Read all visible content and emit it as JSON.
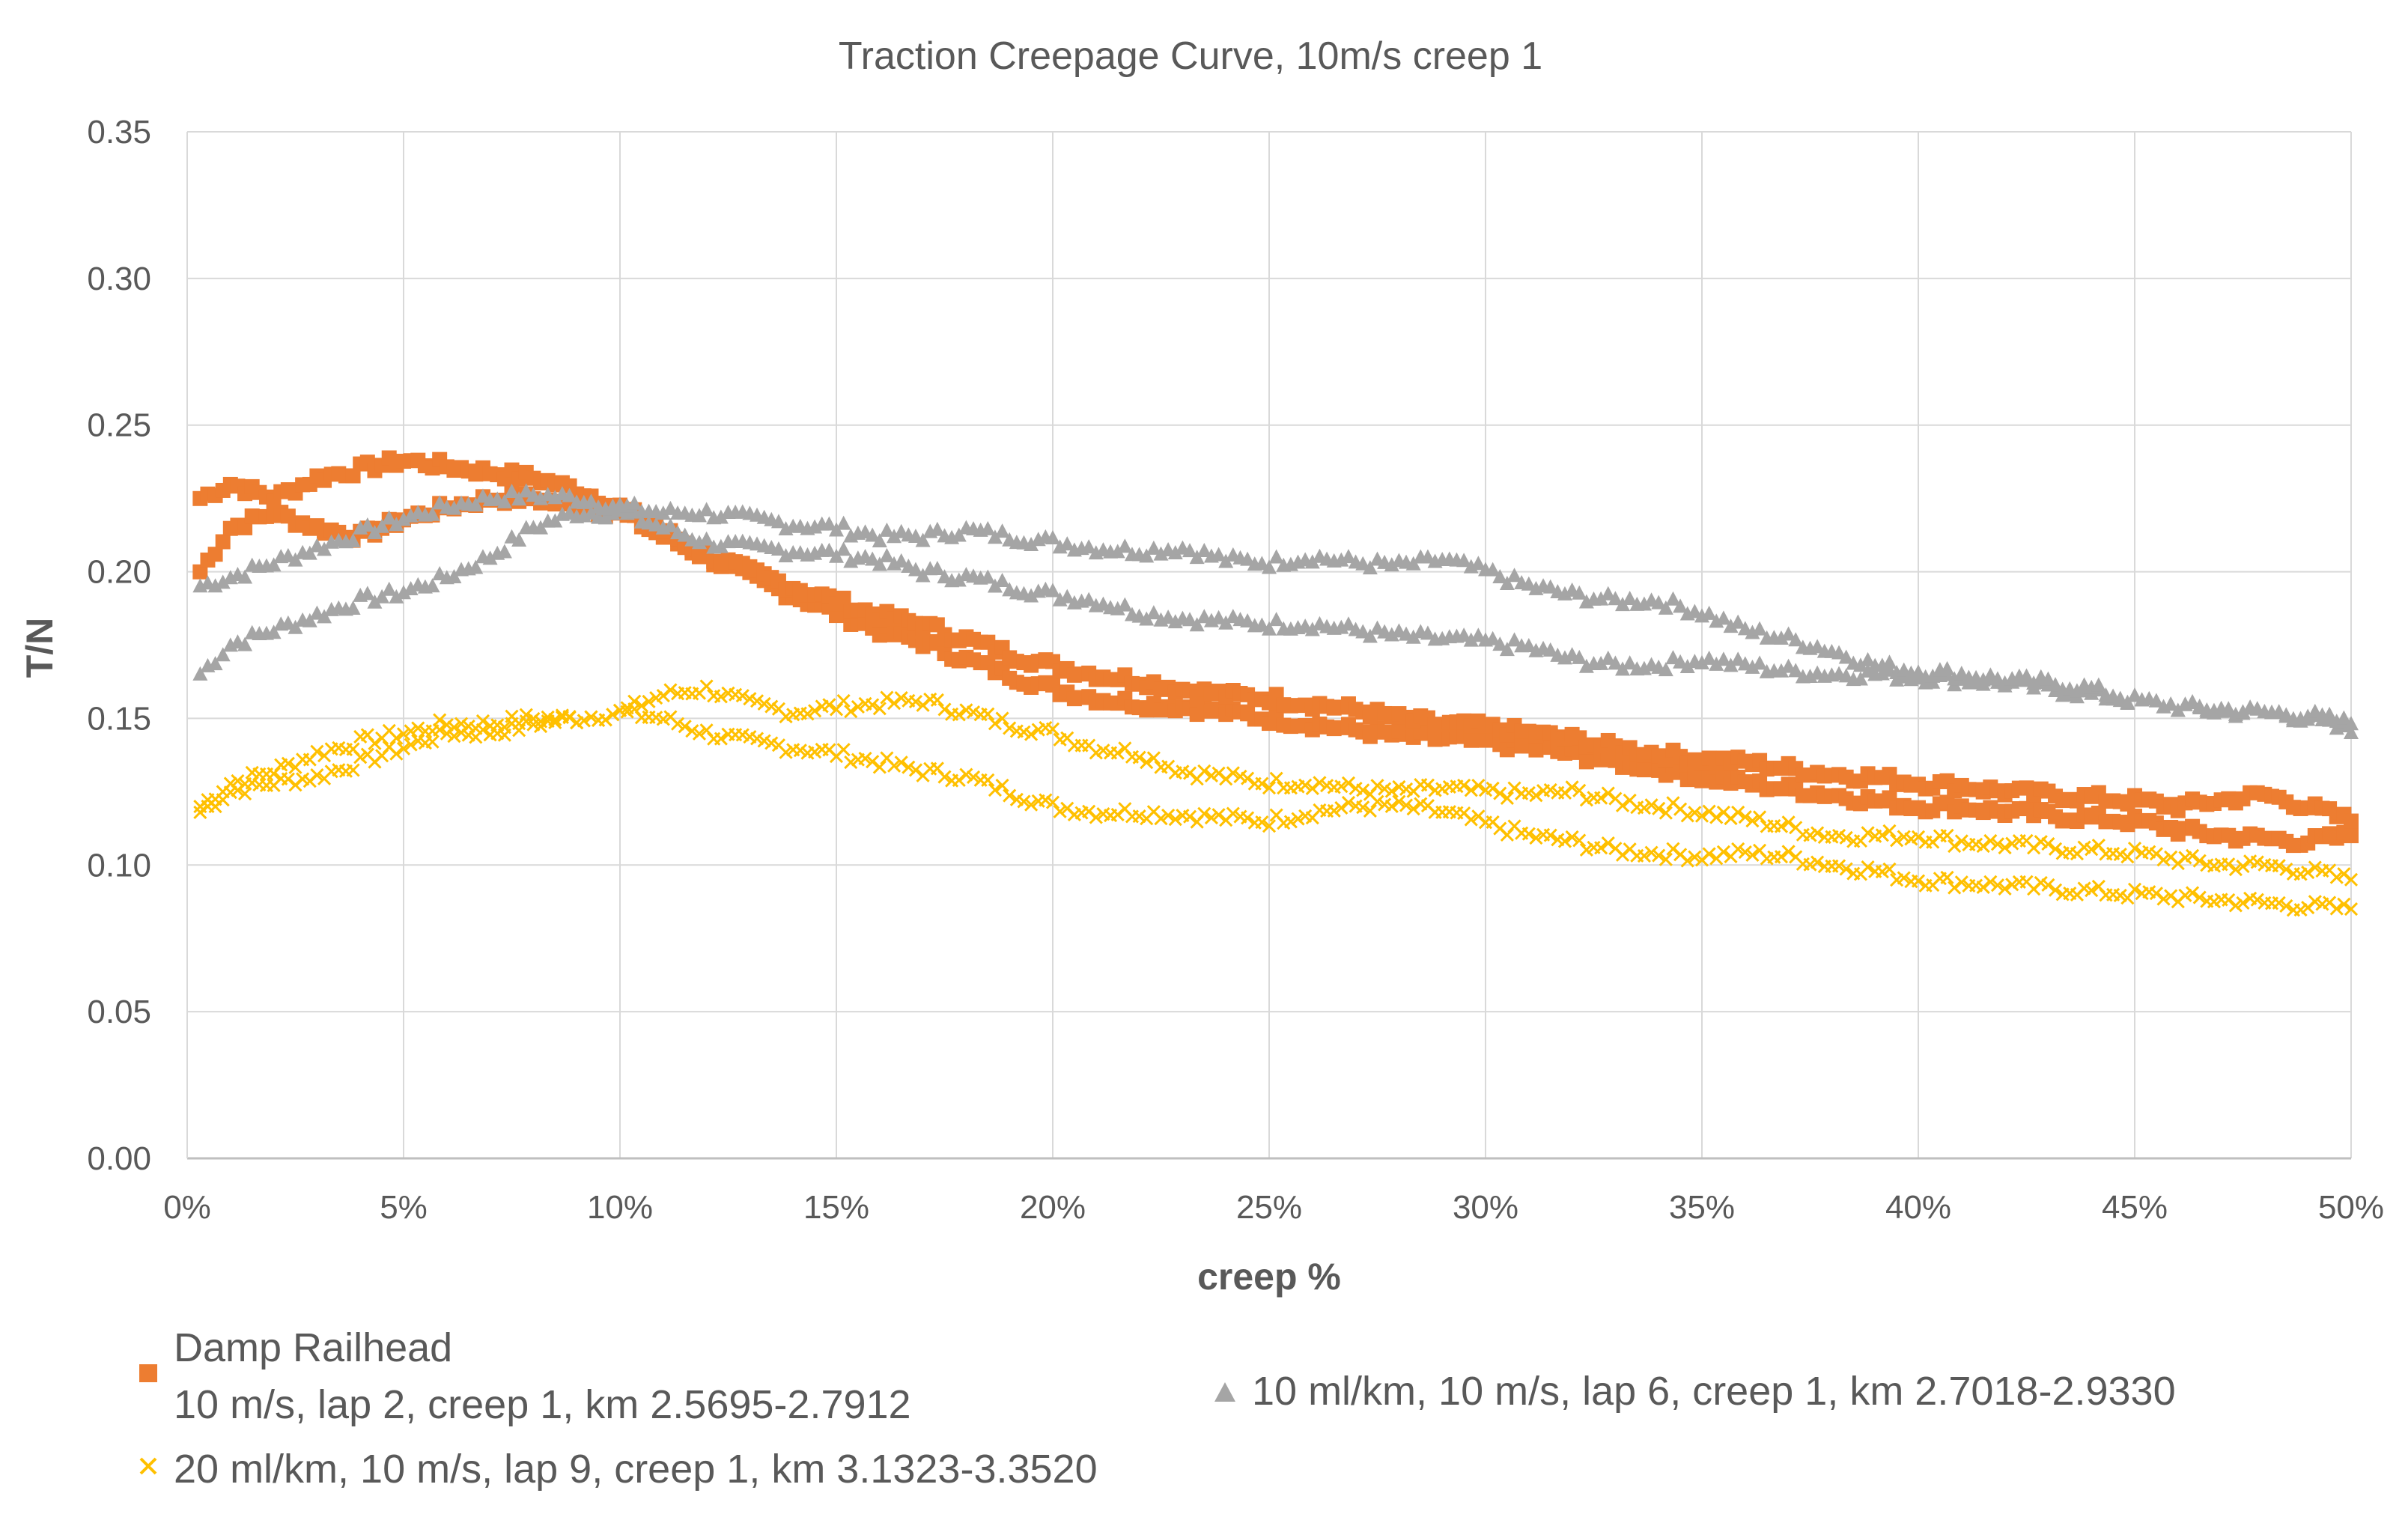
{
  "chart_data": {
    "type": "scatter",
    "title": "Traction Creepage Curve, 10m/s creep 1",
    "xlabel": "creep %",
    "ylabel": "T/N",
    "xlim": [
      0,
      50
    ],
    "ylim": [
      0,
      0.35
    ],
    "x_ticks": [
      0,
      5,
      10,
      15,
      20,
      25,
      30,
      35,
      40,
      45,
      50
    ],
    "x_tick_labels": [
      "0%",
      "5%",
      "10%",
      "15%",
      "20%",
      "25%",
      "30%",
      "35%",
      "40%",
      "45%",
      "50%"
    ],
    "y_ticks": [
      0,
      0.05,
      0.1,
      0.15,
      0.2,
      0.25,
      0.3,
      0.35
    ],
    "y_tick_labels": [
      "0.00",
      "0.05",
      "0.10",
      "0.15",
      "0.20",
      "0.25",
      "0.30",
      "0.35"
    ],
    "grid": true,
    "legend_position": "bottom",
    "series": [
      {
        "name": "Damp Railhead",
        "name_line2": "10 m/s, lap 2, creep 1, km 2.5695-2.7912",
        "marker": "square",
        "color": "#ED7D31",
        "branches": [
          {
            "x": [
              0.3,
              1,
              2,
              3,
              4,
              5,
              6,
              7,
              8,
              9,
              10,
              11,
              12,
              13,
              14,
              15,
              16,
              17,
              18,
              19,
              20,
              21,
              22,
              23,
              24,
              25,
              26,
              27,
              28,
              29,
              30,
              31,
              32,
              33,
              34,
              35,
              36,
              37,
              38,
              39,
              40,
              41,
              42,
              43,
              44,
              45,
              46,
              47,
              48,
              49,
              50
            ],
            "y": [
              0.2,
              0.215,
              0.22,
              0.215,
              0.212,
              0.218,
              0.222,
              0.225,
              0.225,
              0.222,
              0.22,
              0.212,
              0.205,
              0.198,
              0.192,
              0.186,
              0.18,
              0.176,
              0.17,
              0.165,
              0.16,
              0.157,
              0.155,
              0.154,
              0.152,
              0.15,
              0.148,
              0.146,
              0.144,
              0.143,
              0.142,
              0.14,
              0.138,
              0.135,
              0.133,
              0.13,
              0.128,
              0.126,
              0.124,
              0.122,
              0.12,
              0.12,
              0.118,
              0.117,
              0.116,
              0.115,
              0.112,
              0.11,
              0.109,
              0.108,
              0.11
            ]
          },
          {
            "x": [
              0.3,
              1,
              2,
              3,
              4,
              5,
              6,
              7,
              8,
              9,
              10,
              11,
              12,
              13,
              14,
              15,
              16,
              17,
              18,
              19,
              20,
              21,
              22,
              23,
              24,
              25,
              26,
              27,
              28,
              29,
              30,
              31,
              32,
              33,
              34,
              35,
              36,
              37,
              38,
              39,
              40,
              41,
              42,
              43,
              44,
              45,
              46,
              47,
              48,
              49,
              50
            ],
            "y": [
              0.225,
              0.23,
              0.225,
              0.232,
              0.235,
              0.238,
              0.236,
              0.234,
              0.232,
              0.228,
              0.222,
              0.214,
              0.206,
              0.2,
              0.195,
              0.19,
              0.185,
              0.182,
              0.177,
              0.172,
              0.168,
              0.165,
              0.163,
              0.16,
              0.158,
              0.157,
              0.155,
              0.153,
              0.15,
              0.148,
              0.147,
              0.145,
              0.143,
              0.14,
              0.138,
              0.136,
              0.135,
              0.133,
              0.131,
              0.13,
              0.128,
              0.127,
              0.125,
              0.124,
              0.123,
              0.122,
              0.12,
              0.122,
              0.124,
              0.12,
              0.115
            ]
          }
        ]
      },
      {
        "name": "10 ml/km, 10 m/s, lap 6, creep 1, km 2.7018-2.9330",
        "marker": "triangle",
        "color": "#A5A5A5",
        "branches": [
          {
            "x": [
              0.3,
              1,
              2,
              3,
              4,
              5,
              6,
              7,
              8,
              9,
              10,
              11,
              12,
              13,
              14,
              15,
              16,
              17,
              18,
              19,
              20,
              21,
              22,
              23,
              24,
              25,
              26,
              27,
              28,
              29,
              30,
              31,
              32,
              33,
              34,
              35,
              36,
              37,
              38,
              39,
              40,
              41,
              42,
              43,
              44,
              45,
              46,
              47,
              48,
              49,
              50
            ],
            "y": [
              0.165,
              0.175,
              0.18,
              0.185,
              0.19,
              0.193,
              0.198,
              0.205,
              0.215,
              0.22,
              0.22,
              0.215,
              0.21,
              0.208,
              0.207,
              0.206,
              0.204,
              0.2,
              0.198,
              0.195,
              0.192,
              0.19,
              0.186,
              0.184,
              0.183,
              0.182,
              0.182,
              0.18,
              0.178,
              0.177,
              0.176,
              0.174,
              0.17,
              0.168,
              0.168,
              0.17,
              0.168,
              0.166,
              0.165,
              0.165,
              0.164,
              0.163,
              0.162,
              0.16,
              0.158,
              0.156,
              0.154,
              0.152,
              0.152,
              0.15,
              0.145
            ]
          },
          {
            "x": [
              0.3,
              1,
              2,
              3,
              4,
              5,
              6,
              7,
              8,
              9,
              10,
              11,
              12,
              13,
              14,
              15,
              16,
              17,
              18,
              19,
              20,
              21,
              22,
              23,
              24,
              25,
              26,
              27,
              28,
              29,
              30,
              31,
              32,
              33,
              34,
              35,
              36,
              37,
              38,
              39,
              40,
              41,
              42,
              43,
              44,
              45,
              46,
              47,
              48,
              49,
              50
            ],
            "y": [
              0.195,
              0.198,
              0.203,
              0.208,
              0.213,
              0.218,
              0.222,
              0.225,
              0.226,
              0.225,
              0.222,
              0.22,
              0.22,
              0.218,
              0.216,
              0.215,
              0.212,
              0.212,
              0.214,
              0.212,
              0.21,
              0.208,
              0.207,
              0.208,
              0.204,
              0.203,
              0.205,
              0.203,
              0.202,
              0.204,
              0.2,
              0.195,
              0.192,
              0.19,
              0.19,
              0.186,
              0.18,
              0.177,
              0.173,
              0.168,
              0.166,
              0.165,
              0.163,
              0.162,
              0.16,
              0.156,
              0.154,
              0.153,
              0.152,
              0.151,
              0.148
            ]
          }
        ]
      },
      {
        "name": "20 ml/km, 10 m/s, lap 9, creep 1, km 3.1323-3.3520",
        "marker": "x",
        "color": "#FFC000",
        "branches": [
          {
            "x": [
              0.3,
              1,
              2,
              3,
              4,
              5,
              6,
              7,
              8,
              9,
              10,
              11,
              12,
              13,
              14,
              15,
              16,
              17,
              18,
              19,
              20,
              21,
              22,
              23,
              24,
              25,
              26,
              27,
              28,
              29,
              30,
              31,
              32,
              33,
              34,
              35,
              36,
              37,
              38,
              39,
              40,
              41,
              42,
              43,
              44,
              45,
              46,
              47,
              48,
              49,
              50
            ],
            "y": [
              0.118,
              0.125,
              0.128,
              0.13,
              0.135,
              0.14,
              0.145,
              0.145,
              0.148,
              0.15,
              0.152,
              0.15,
              0.145,
              0.142,
              0.14,
              0.138,
              0.135,
              0.132,
              0.13,
              0.125,
              0.12,
              0.118,
              0.118,
              0.117,
              0.116,
              0.115,
              0.118,
              0.12,
              0.12,
              0.118,
              0.114,
              0.11,
              0.108,
              0.105,
              0.104,
              0.103,
              0.104,
              0.103,
              0.1,
              0.098,
              0.095,
              0.094,
              0.093,
              0.092,
              0.091,
              0.09,
              0.089,
              0.088,
              0.087,
              0.086,
              0.085
            ]
          },
          {
            "x": [
              0.3,
              1,
              2,
              3,
              4,
              5,
              6,
              7,
              8,
              9,
              10,
              11,
              12,
              13,
              14,
              15,
              16,
              17,
              18,
              19,
              20,
              21,
              22,
              23,
              24,
              25,
              26,
              27,
              28,
              29,
              30,
              31,
              32,
              33,
              34,
              35,
              36,
              37,
              38,
              39,
              40,
              41,
              42,
              43,
              44,
              45,
              46,
              47,
              48,
              49,
              50
            ],
            "y": [
              0.12,
              0.128,
              0.132,
              0.138,
              0.142,
              0.145,
              0.148,
              0.148,
              0.15,
              0.15,
              0.152,
              0.158,
              0.16,
              0.155,
              0.152,
              0.154,
              0.155,
              0.156,
              0.152,
              0.148,
              0.145,
              0.14,
              0.138,
              0.132,
              0.13,
              0.128,
              0.128,
              0.126,
              0.125,
              0.126,
              0.125,
              0.124,
              0.125,
              0.122,
              0.12,
              0.118,
              0.116,
              0.113,
              0.11,
              0.11,
              0.11,
              0.108,
              0.107,
              0.106,
              0.105,
              0.104,
              0.102,
              0.1,
              0.1,
              0.098,
              0.095
            ]
          }
        ]
      }
    ]
  }
}
